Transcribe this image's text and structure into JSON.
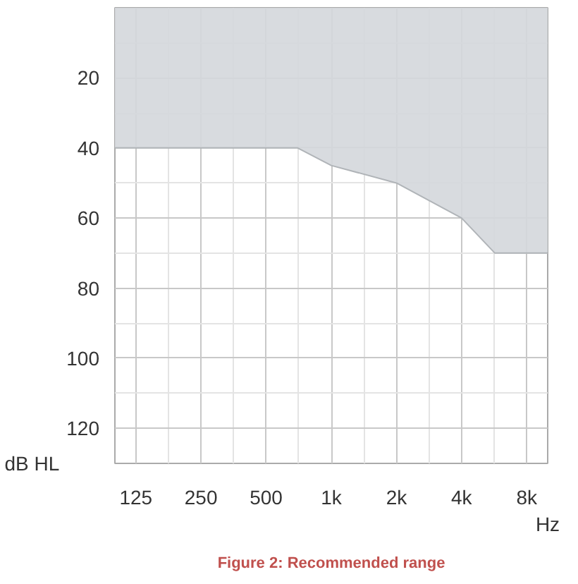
{
  "chart_data": {
    "type": "area",
    "title": "Figure 2: Recommended range",
    "ylabel": "dB HL",
    "xlabel": "Hz",
    "log": "x",
    "series": [
      {
        "color": "#d4d7db",
        "x": [
          100,
          700,
          1000,
          2000,
          4000,
          5700,
          10000
        ],
        "values": [
          40,
          40,
          45,
          50,
          60,
          70,
          70
        ]
      }
    ],
    "xlim": [
      100,
      10000
    ],
    "ylim": [
      130,
      0
    ],
    "xticks": [
      125,
      250,
      500,
      {
        "value": 1000,
        "label": "1k"
      },
      {
        "value": 2000,
        "label": "2k"
      },
      {
        "value": 4000,
        "label": "4k"
      },
      {
        "value": 8000,
        "label": "8k"
      }
    ],
    "yticks": [
      20,
      40,
      60,
      80,
      100,
      120
    ],
    "grid": true
  }
}
